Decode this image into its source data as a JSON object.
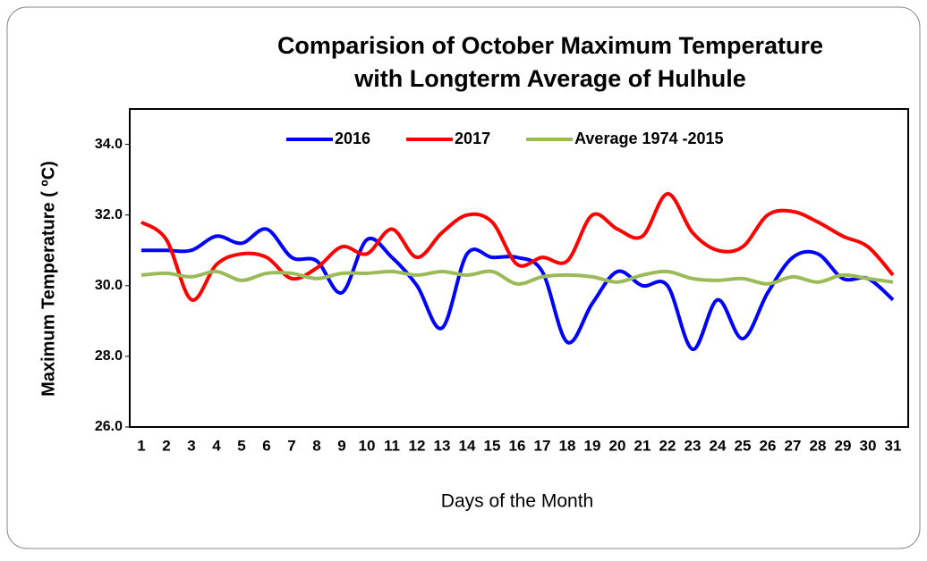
{
  "chart_data": {
    "type": "line",
    "title": [
      "Comparision of October Maximum Temperature",
      "with Longterm Average of Hulhule"
    ],
    "xlabel": "Days of the Month",
    "ylabel": "Maximum Temperature ( ºC)",
    "categories": [
      "1",
      "2",
      "3",
      "4",
      "5",
      "6",
      "7",
      "8",
      "9",
      "10",
      "11",
      "12",
      "13",
      "14",
      "15",
      "16",
      "17",
      "18",
      "19",
      "20",
      "21",
      "22",
      "23",
      "24",
      "25",
      "26",
      "27",
      "28",
      "29",
      "30",
      "31"
    ],
    "series": [
      {
        "name": "2016",
        "color": "#0000ff",
        "values": [
          31.0,
          31.0,
          31.0,
          31.4,
          31.2,
          31.6,
          30.8,
          30.7,
          29.8,
          31.3,
          30.8,
          30.0,
          28.8,
          30.9,
          30.8,
          30.8,
          30.4,
          28.4,
          29.5,
          30.4,
          30.0,
          30.0,
          28.2,
          29.6,
          28.5,
          29.8,
          30.8,
          30.9,
          30.2,
          30.2,
          29.6
        ]
      },
      {
        "name": "2017",
        "color": "#ff0000",
        "values": [
          31.8,
          31.3,
          29.6,
          30.6,
          30.9,
          30.8,
          30.2,
          30.5,
          31.1,
          30.9,
          31.6,
          30.8,
          31.5,
          32.0,
          31.8,
          30.6,
          30.8,
          30.7,
          32.0,
          31.6,
          31.4,
          32.6,
          31.5,
          31.0,
          31.1,
          32.0,
          32.1,
          31.8,
          31.4,
          31.1,
          30.3
        ]
      },
      {
        "name": "Average 1974 -2015",
        "color": "#9bbb59",
        "values": [
          30.3,
          30.35,
          30.25,
          30.4,
          30.15,
          30.35,
          30.35,
          30.2,
          30.35,
          30.35,
          30.4,
          30.3,
          30.4,
          30.3,
          30.4,
          30.05,
          30.25,
          30.3,
          30.25,
          30.1,
          30.3,
          30.4,
          30.2,
          30.15,
          30.2,
          30.05,
          30.25,
          30.1,
          30.3,
          30.2,
          30.1
        ]
      }
    ],
    "ylim": [
      26,
      35
    ],
    "yticks": [
      {
        "value": 26,
        "label": "26.0"
      },
      {
        "value": 28,
        "label": "28.0"
      },
      {
        "value": 30,
        "label": "30.0"
      },
      {
        "value": 32,
        "label": "32.0"
      },
      {
        "value": 34,
        "label": "34.0"
      }
    ],
    "grid": false,
    "legend": "top"
  }
}
